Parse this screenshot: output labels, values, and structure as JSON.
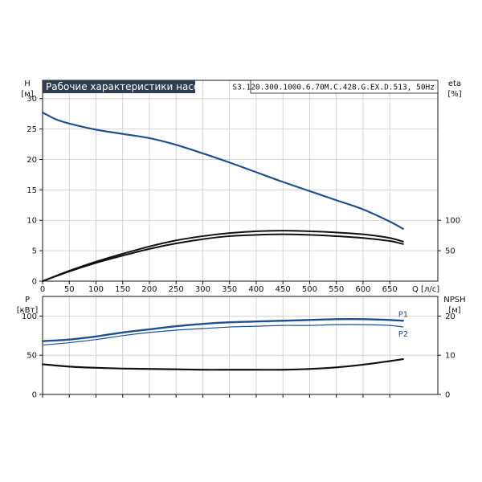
{
  "chart_data": [
    {
      "type": "line",
      "title": "Рабочие характеристики насоса",
      "model": "S3.120.300.1000.6.70M.C.428.G.EX.D.513, 50Hz",
      "ylabel_left": "H",
      "ylabel_left_unit": "[м]",
      "ylabel_right": "eta",
      "ylabel_right_unit": "[%]",
      "xlabel": "Q [л/с]",
      "xlim": [
        0,
        740
      ],
      "ylim_left": [
        0,
        33
      ],
      "ylim_right": [
        0,
        330
      ],
      "xticks": [
        "0",
        "50",
        "100",
        "150",
        "200",
        "250",
        "300",
        "350",
        "400",
        "450",
        "500",
        "550",
        "600",
        "650"
      ],
      "yticks_left": [
        "0",
        "5",
        "10",
        "15",
        "20",
        "25",
        "30"
      ],
      "yticks_right": [
        "50",
        "100"
      ],
      "grid": true,
      "series": [
        {
          "axis": "left",
          "color": "#1f4f8f",
          "x": [
            0,
            25,
            50,
            100,
            150,
            200,
            250,
            300,
            350,
            400,
            450,
            500,
            550,
            600,
            650,
            675
          ],
          "values": [
            27.7,
            26.6,
            25.9,
            24.9,
            24.2,
            23.5,
            22.4,
            21.0,
            19.5,
            17.9,
            16.3,
            14.8,
            13.3,
            11.8,
            9.8,
            8.6
          ]
        },
        {
          "axis": "right",
          "color": "#111111",
          "x": [
            0,
            50,
            100,
            150,
            200,
            250,
            300,
            350,
            400,
            450,
            500,
            550,
            600,
            650,
            675
          ],
          "values": [
            0,
            17,
            32,
            45,
            57,
            67,
            74,
            79,
            82,
            83,
            82,
            80,
            77,
            71,
            65
          ]
        },
        {
          "axis": "right",
          "color": "#111111",
          "x": [
            0,
            50,
            100,
            150,
            200,
            250,
            300,
            350,
            400,
            450,
            500,
            550,
            600,
            650,
            675
          ],
          "values": [
            0,
            16,
            30,
            42,
            53,
            62,
            69,
            74,
            76,
            77,
            76,
            74,
            71,
            66,
            61
          ]
        }
      ]
    },
    {
      "type": "line",
      "ylabel_left": "P",
      "ylabel_left_unit": "[кВт]",
      "ylabel_right": "NPSH",
      "ylabel_right_unit": "[м]",
      "xlim": [
        0,
        740
      ],
      "ylim_left": [
        0,
        125
      ],
      "ylim_right": [
        0,
        25
      ],
      "yticks_left": [
        "0",
        "50",
        "100"
      ],
      "yticks_right": [
        "0",
        "10",
        "20"
      ],
      "grid": true,
      "series": [
        {
          "name": "P1",
          "axis": "left",
          "color": "#1f4f8f",
          "x": [
            0,
            50,
            100,
            150,
            200,
            250,
            300,
            350,
            400,
            450,
            500,
            550,
            600,
            650,
            675
          ],
          "values": [
            68,
            70,
            74,
            79,
            83,
            87,
            90,
            92,
            93,
            94,
            95,
            96,
            96,
            95,
            94
          ]
        },
        {
          "name": "P2",
          "axis": "left",
          "color": "#1f4f8f",
          "x": [
            0,
            50,
            100,
            150,
            200,
            250,
            300,
            350,
            400,
            450,
            500,
            550,
            600,
            650,
            675
          ],
          "values": [
            63,
            66,
            70,
            75,
            79,
            82,
            84,
            86,
            87,
            88,
            88,
            89,
            89,
            88,
            86
          ]
        },
        {
          "axis": "right",
          "color": "#111111",
          "x": [
            0,
            50,
            100,
            150,
            200,
            250,
            300,
            350,
            400,
            450,
            500,
            550,
            600,
            650,
            675
          ],
          "values": [
            7.7,
            7.1,
            6.8,
            6.6,
            6.5,
            6.4,
            6.3,
            6.3,
            6.3,
            6.3,
            6.5,
            6.9,
            7.6,
            8.5,
            9.0
          ]
        }
      ]
    }
  ]
}
